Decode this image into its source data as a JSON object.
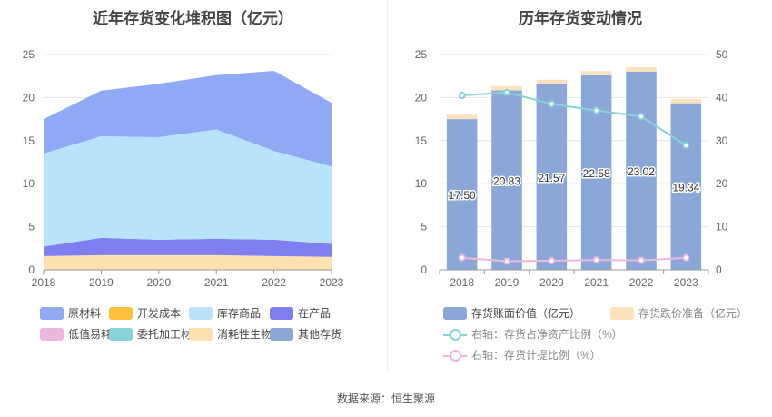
{
  "source_text": "数据来源：恒生聚源",
  "chart_data": [
    {
      "type": "area",
      "stacked": true,
      "title": "近年存货变化堆积图（亿元）",
      "x": [
        "2018",
        "2019",
        "2020",
        "2021",
        "2022",
        "2023"
      ],
      "ylim": [
        0,
        25
      ],
      "yticks": [
        "0",
        "5",
        "10",
        "15",
        "20",
        "25"
      ],
      "series": [
        {
          "name": "原材料",
          "color": "#8fa9f5",
          "values": [
            4.0,
            5.3,
            6.2,
            6.3,
            9.3,
            7.4
          ]
        },
        {
          "name": "开发成本",
          "color": "#fcc13c",
          "values": [
            0,
            0,
            0,
            0,
            0,
            0
          ]
        },
        {
          "name": "库存商品",
          "color": "#b9e3fb",
          "values": [
            10.8,
            11.8,
            11.9,
            12.7,
            10.3,
            9.0
          ]
        },
        {
          "name": "在产品",
          "color": "#7f7ff2",
          "values": [
            1.1,
            2.0,
            1.8,
            1.9,
            1.9,
            1.5
          ]
        },
        {
          "name": "低值易耗品",
          "color": "#ebb7e0",
          "values": [
            0,
            0,
            0,
            0,
            0,
            0
          ]
        },
        {
          "name": "委托加工材料",
          "color": "#86d3da",
          "values": [
            0,
            0,
            0,
            0,
            0,
            0
          ]
        },
        {
          "name": "消耗性生物资产",
          "color": "#ffe0b0",
          "values": [
            1.6,
            1.7,
            1.7,
            1.7,
            1.6,
            1.5
          ]
        },
        {
          "name": "其他存货",
          "color": "#8aa7d8",
          "values": [
            0,
            0,
            0,
            0,
            0,
            0
          ]
        }
      ],
      "stack_order": [
        "消耗性生物资产",
        "在产品",
        "库存商品",
        "原材料"
      ]
    },
    {
      "type": "bar",
      "title": "历年存货变动情况",
      "categories": [
        "2018",
        "2019",
        "2020",
        "2021",
        "2022",
        "2023"
      ],
      "ylim": [
        0,
        25
      ],
      "yticks": [
        "0",
        "5",
        "10",
        "15",
        "20",
        "25"
      ],
      "y2lim": [
        0,
        50
      ],
      "y2ticks": [
        "0",
        "10",
        "20",
        "30",
        "40",
        "50"
      ],
      "series": [
        {
          "name": "存货账面价值（亿元）",
          "color": "#8aa7d8",
          "values": [
            17.5,
            20.83,
            21.57,
            22.58,
            23.02,
            19.34
          ],
          "labels": [
            "17.50",
            "20.83",
            "21.57",
            "22.58",
            "23.02",
            "19.34"
          ]
        },
        {
          "name": "存货跌价准备（亿元）",
          "color": "#fde2bd",
          "values": [
            0.5,
            0.5,
            0.5,
            0.5,
            0.5,
            0.5
          ]
        },
        {
          "name": "右轴：存货占净资产比例（%）",
          "color": "#86d3da",
          "axis": "right",
          "values": [
            40.5,
            41.2,
            38.5,
            37.0,
            35.6,
            28.9
          ]
        },
        {
          "name": "右轴：存货计提比例（%）",
          "color": "#ebb7e0",
          "axis": "right",
          "values": [
            2.8,
            2.0,
            2.1,
            2.3,
            2.2,
            2.8
          ]
        }
      ]
    }
  ]
}
